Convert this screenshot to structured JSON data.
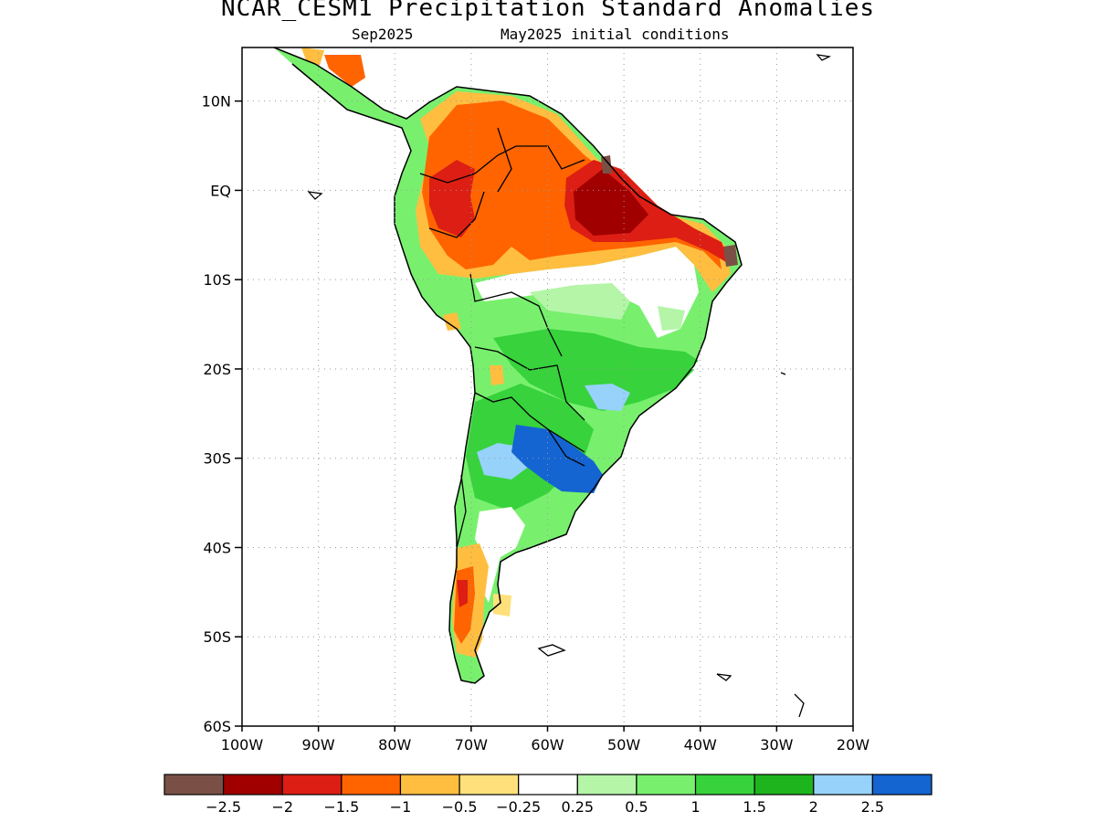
{
  "title": "NCAR_CESM1 Precipitation Standard Anomalies",
  "subtitle": {
    "valid": "Sep2025",
    "init": "May2025 initial conditions"
  },
  "map": {
    "lat_labels": [
      "10N",
      "EQ",
      "10S",
      "20S",
      "30S",
      "40S",
      "50S",
      "60S"
    ],
    "lon_labels": [
      "100W",
      "90W",
      "80W",
      "70W",
      "60W",
      "50W",
      "40W",
      "30W",
      "20W"
    ],
    "extent": {
      "lon": [
        -100,
        -20
      ],
      "lat": [
        -60,
        16
      ]
    },
    "gridlines": true
  },
  "legend": {
    "colors": [
      "#7a5046",
      "#a00000",
      "#dc1e14",
      "#ff6400",
      "#ffbe40",
      "#ffe07a",
      "#ffffff",
      "#b4f5a8",
      "#78f06e",
      "#37d23c",
      "#1eb41e",
      "#96d2fa",
      "#1464d2"
    ],
    "labels": [
      "-2.5",
      "-2",
      "-1.5",
      "-1",
      "-0.5",
      "-0.25",
      "0.25",
      "0.5",
      "1",
      "1.5",
      "2",
      "2.5"
    ]
  }
}
